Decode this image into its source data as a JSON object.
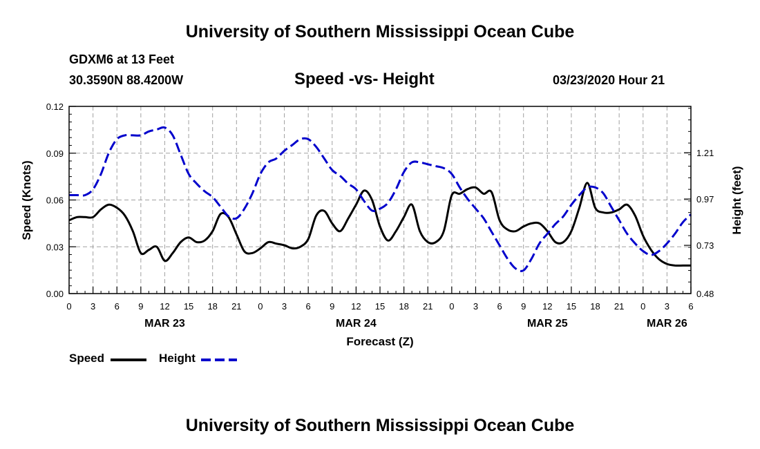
{
  "header": {
    "top_title": "University of Southern Mississippi Ocean Cube",
    "bottom_title": "University of Southern Mississippi Ocean Cube",
    "station": "GDXM6 at 13 Feet",
    "location": "30.3590N 88.4200W",
    "subtitle": "Speed -vs- Height",
    "datetime": "03/23/2020 Hour 21"
  },
  "legend": {
    "speed_label": "Speed",
    "height_label": "Height"
  },
  "colors": {
    "speed": "#000000",
    "height": "#0000cc",
    "grid": "#a0a0a0"
  },
  "chart_data": {
    "type": "line",
    "title": "Speed -vs- Height",
    "xlabel": "Forecast (Z)",
    "ylabel": "Speed (Knots)",
    "y2label": "Height (feet)",
    "xlim": [
      0,
      78
    ],
    "ylim": [
      0,
      0.12
    ],
    "y2lim": [
      0.48,
      1.45
    ],
    "x_ticks": [
      0,
      3,
      6,
      9,
      12,
      15,
      18,
      21,
      24,
      27,
      30,
      33,
      36,
      39,
      42,
      45,
      48,
      51,
      54,
      57,
      60,
      63,
      66,
      69,
      72,
      75,
      78
    ],
    "x_tick_labels": [
      "0",
      "3",
      "6",
      "9",
      "12",
      "15",
      "18",
      "21",
      "0",
      "3",
      "6",
      "9",
      "12",
      "15",
      "18",
      "21",
      "0",
      "3",
      "6",
      "9",
      "12",
      "15",
      "18",
      "21",
      "0",
      "3",
      "6"
    ],
    "y_ticks": [
      0.0,
      0.03,
      0.06,
      0.09,
      0.12
    ],
    "y_tick_labels": [
      "0.00",
      "0.03",
      "0.06",
      "0.09",
      "0.12"
    ],
    "y2_ticks": [
      0.48,
      0.73,
      0.97,
      1.21
    ],
    "y2_tick_labels": [
      "0.48",
      "0.73",
      "0.97",
      "1.21"
    ],
    "date_labels": [
      {
        "x": 12,
        "label": "MAR 23"
      },
      {
        "x": 36,
        "label": "MAR 24"
      },
      {
        "x": 60,
        "label": "MAR 25"
      },
      {
        "x": 75,
        "label": "MAR 26"
      }
    ],
    "grid": true,
    "series": [
      {
        "name": "Speed",
        "axis": "left",
        "style": "solid",
        "x": [
          0,
          1,
          2,
          3,
          4,
          5,
          6,
          7,
          8,
          9,
          10,
          11,
          12,
          13,
          14,
          15,
          16,
          17,
          18,
          19,
          20,
          21,
          22,
          23,
          24,
          25,
          26,
          27,
          28,
          29,
          30,
          31,
          32,
          33,
          34,
          35,
          36,
          37,
          38,
          39,
          40,
          41,
          42,
          43,
          44,
          45,
          46,
          47,
          48,
          49,
          50,
          51,
          52,
          53,
          54,
          55,
          56,
          57,
          58,
          59,
          60,
          61,
          62,
          63,
          64,
          65,
          66,
          67,
          68,
          69,
          70,
          71,
          72,
          73,
          74,
          75,
          76,
          77,
          78
        ],
        "values": [
          0.047,
          0.049,
          0.049,
          0.049,
          0.054,
          0.057,
          0.055,
          0.05,
          0.04,
          0.026,
          0.028,
          0.03,
          0.021,
          0.026,
          0.033,
          0.036,
          0.033,
          0.034,
          0.04,
          0.051,
          0.049,
          0.038,
          0.027,
          0.026,
          0.029,
          0.033,
          0.032,
          0.031,
          0.029,
          0.03,
          0.035,
          0.05,
          0.053,
          0.045,
          0.04,
          0.048,
          0.057,
          0.066,
          0.06,
          0.043,
          0.034,
          0.04,
          0.049,
          0.057,
          0.04,
          0.033,
          0.033,
          0.04,
          0.063,
          0.064,
          0.067,
          0.068,
          0.064,
          0.065,
          0.047,
          0.041,
          0.04,
          0.043,
          0.045,
          0.045,
          0.04,
          0.033,
          0.033,
          0.04,
          0.055,
          0.071,
          0.055,
          0.052,
          0.052,
          0.054,
          0.057,
          0.05,
          0.037,
          0.028,
          0.022,
          0.019,
          0.018,
          0.018,
          0.018
        ]
      },
      {
        "name": "Height",
        "axis": "right",
        "style": "dashed",
        "x": [
          0,
          1,
          2,
          3,
          4,
          5,
          6,
          7,
          8,
          9,
          10,
          11,
          12,
          13,
          14,
          15,
          16,
          17,
          18,
          19,
          20,
          21,
          22,
          23,
          24,
          25,
          26,
          27,
          28,
          29,
          30,
          31,
          32,
          33,
          34,
          35,
          36,
          37,
          38,
          39,
          40,
          41,
          42,
          43,
          44,
          45,
          46,
          47,
          48,
          49,
          50,
          51,
          52,
          53,
          54,
          55,
          56,
          57,
          58,
          59,
          60,
          61,
          62,
          63,
          64,
          65,
          66,
          67,
          68,
          69,
          70,
          71,
          72,
          73,
          74,
          75,
          76,
          77,
          78
        ],
        "values": [
          0.99,
          0.99,
          0.99,
          1.02,
          1.1,
          1.21,
          1.28,
          1.3,
          1.3,
          1.3,
          1.32,
          1.33,
          1.34,
          1.3,
          1.2,
          1.1,
          1.05,
          1.01,
          0.98,
          0.93,
          0.88,
          0.87,
          0.92,
          1.0,
          1.1,
          1.16,
          1.18,
          1.22,
          1.25,
          1.28,
          1.28,
          1.24,
          1.18,
          1.12,
          1.09,
          1.05,
          1.02,
          0.96,
          0.91,
          0.92,
          0.95,
          1.02,
          1.11,
          1.16,
          1.16,
          1.15,
          1.14,
          1.13,
          1.1,
          1.03,
          0.97,
          0.92,
          0.87,
          0.8,
          0.73,
          0.66,
          0.61,
          0.6,
          0.66,
          0.74,
          0.79,
          0.84,
          0.88,
          0.94,
          0.99,
          1.03,
          1.03,
          1.0,
          0.93,
          0.86,
          0.79,
          0.74,
          0.7,
          0.68,
          0.7,
          0.74,
          0.79,
          0.85,
          0.89
        ]
      }
    ]
  }
}
